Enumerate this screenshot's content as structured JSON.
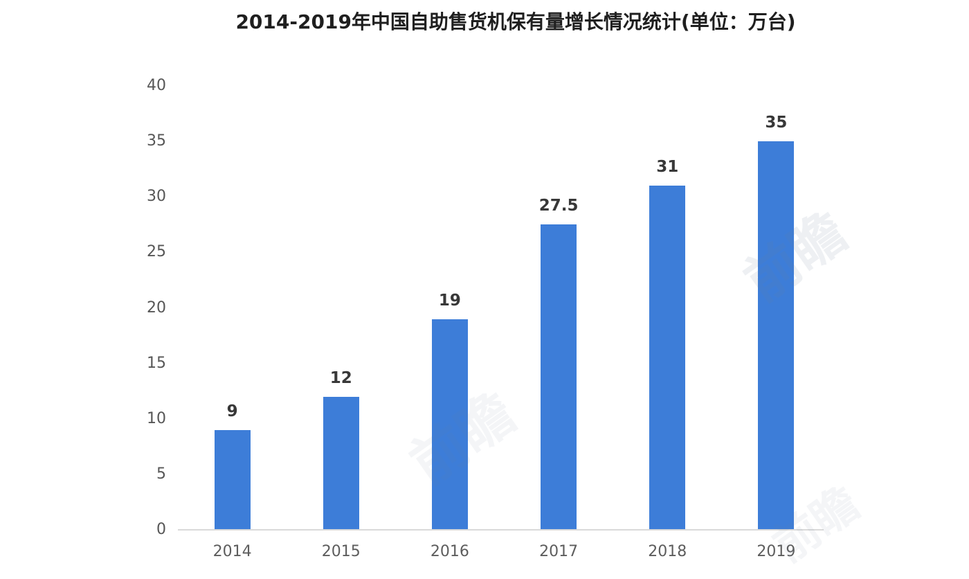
{
  "chart_data": {
    "type": "bar",
    "title": "2014-2019年中国自助售货机保有量增长情况统计(单位：万台)",
    "categories": [
      "2014",
      "2015",
      "2016",
      "2017",
      "2018",
      "2019"
    ],
    "values": [
      9,
      12,
      19,
      27.5,
      31,
      35
    ],
    "value_labels": [
      "9",
      "12",
      "19",
      "27.5",
      "31",
      "35"
    ],
    "xlabel": "",
    "ylabel": "",
    "ylim": [
      0,
      40
    ],
    "yticks": [
      0,
      5,
      10,
      15,
      20,
      25,
      30,
      35,
      40
    ],
    "grid": false,
    "legend_position": "none",
    "bar_color": "#3d7dd8",
    "axis_line_color": "#d9d9d9",
    "ytick_label_color": "#565656",
    "xtick_label_color": "#5d5d5d",
    "value_label_color": "#383838",
    "title_color": "#1f1f1f",
    "background_color": "#ffffff"
  },
  "watermark": {
    "text": "前瞻"
  }
}
